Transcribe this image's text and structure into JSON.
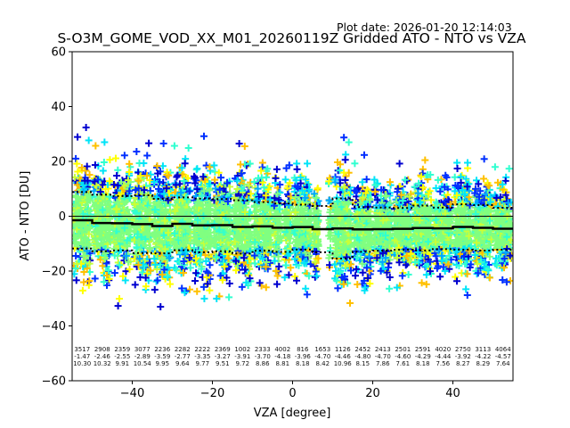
{
  "plot_date": "Plot date: 2026-01-20 12:14:03",
  "chart_data": {
    "type": "scatter",
    "title": "S-O3M_GOME_VOD_XX_M01_20260119Z Gridded ATO - NTO vs VZA",
    "xlabel": "VZA [degree]",
    "ylabel": "ATO - NTO [DU]",
    "xlim": [
      -55,
      55
    ],
    "ylim": [
      -60,
      60
    ],
    "xticks": [
      -40,
      -20,
      0,
      20,
      40
    ],
    "xtick_labels": [
      "−40",
      "−20",
      "0",
      "20",
      "40"
    ],
    "yticks": [
      -60,
      -40,
      -20,
      0,
      20,
      40,
      60
    ],
    "ytick_labels": [
      "−60",
      "−40",
      "−20",
      "0",
      "20",
      "40",
      "60"
    ],
    "grid": false,
    "marker": "+",
    "zero_line": 0,
    "bin_width": 5,
    "bins": {
      "x_start": [
        -55,
        -50,
        -45,
        -40,
        -35,
        -30,
        -25,
        -20,
        -15,
        -10,
        -5,
        0,
        5,
        10,
        15,
        20,
        25,
        30,
        35,
        40,
        45,
        50
      ],
      "count": [
        "3517",
        "2908",
        "2359",
        "3077",
        "2236",
        "2282",
        "2222",
        "2369",
        "1002",
        "2333",
        "4002",
        "816",
        "1653",
        "1126",
        "2452",
        "2413",
        "2501",
        "2591",
        "4020",
        "2750",
        "3113",
        "4064"
      ],
      "mean": [
        "-1.47",
        "-2.46",
        "-2.55",
        "-2.89",
        "-3.59",
        "-2.77",
        "-3.35",
        "-3.27",
        "-3.91",
        "-3.70",
        "-4.18",
        "-3.96",
        "-4.70",
        "-4.46",
        "-4.80",
        "-4.70",
        "-4.60",
        "-4.29",
        "-4.44",
        "-3.92",
        "-4.22",
        "-4.57"
      ],
      "std": [
        "10.30",
        "10.32",
        "9.91",
        "10.54",
        "9.95",
        "9.64",
        "9.77",
        "9.51",
        "9.72",
        "8.86",
        "8.81",
        "8.18",
        "8.42",
        "10.96",
        "8.15",
        "7.86",
        "7.61",
        "8.18",
        "7.56",
        "8.27",
        "8.29",
        "7.64"
      ]
    },
    "series": [
      {
        "name": "mean",
        "style": "solid",
        "color": "#000000"
      },
      {
        "name": "mean+std",
        "style": "dotted",
        "color": "#000000"
      },
      {
        "name": "mean-std",
        "style": "dotted",
        "color": "#000000"
      }
    ],
    "point_colors": [
      "#0000d0",
      "#0030ff",
      "#00a8ff",
      "#00e4f8",
      "#30ffd0",
      "#80ff80",
      "#c8ff38",
      "#ffff00",
      "#ffc000"
    ]
  }
}
